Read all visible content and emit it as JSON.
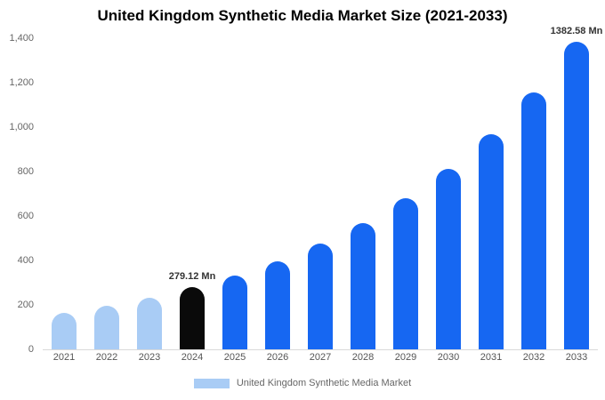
{
  "title": "United Kingdom Synthetic Media Market Size (2021-2033)",
  "legend": {
    "label": "United Kingdom Synthetic Media Market",
    "swatch_color": "#a9ccf5"
  },
  "colors": {
    "light_blue_bar": "#a9ccf5",
    "black_bar": "#0a0a0a",
    "blue_bar": "#1667f2",
    "axis_text": "#666666",
    "baseline": "#d9d9d9"
  },
  "chart_data": {
    "type": "bar",
    "title": "United Kingdom Synthetic Media Market Size (2021-2033)",
    "xlabel": "",
    "ylabel": "",
    "ylim": [
      0,
      1400
    ],
    "grid": false,
    "legend_position": "bottom",
    "categories": [
      "2021",
      "2022",
      "2023",
      "2024",
      "2025",
      "2026",
      "2027",
      "2028",
      "2029",
      "2030",
      "2031",
      "2032",
      "2033"
    ],
    "values": [
      164,
      196,
      234,
      279.12,
      333,
      398,
      476,
      568,
      679,
      811,
      969,
      1157,
      1382.58
    ],
    "bar_colors": [
      "#a9ccf5",
      "#a9ccf5",
      "#a9ccf5",
      "#0a0a0a",
      "#1667f2",
      "#1667f2",
      "#1667f2",
      "#1667f2",
      "#1667f2",
      "#1667f2",
      "#1667f2",
      "#1667f2",
      "#1667f2"
    ],
    "data_labels": [
      "",
      "",
      "",
      "279.12 Mn",
      "",
      "",
      "",
      "",
      "",
      "",
      "",
      "",
      "1382.58 Mn"
    ],
    "yticks": [
      0,
      200,
      400,
      600,
      800,
      1000,
      1200,
      1400
    ],
    "ytick_labels": [
      "0",
      "200",
      "400",
      "600",
      "800",
      "1,000",
      "1,200",
      "1,400"
    ],
    "series_name": "United Kingdom Synthetic Media Market"
  }
}
